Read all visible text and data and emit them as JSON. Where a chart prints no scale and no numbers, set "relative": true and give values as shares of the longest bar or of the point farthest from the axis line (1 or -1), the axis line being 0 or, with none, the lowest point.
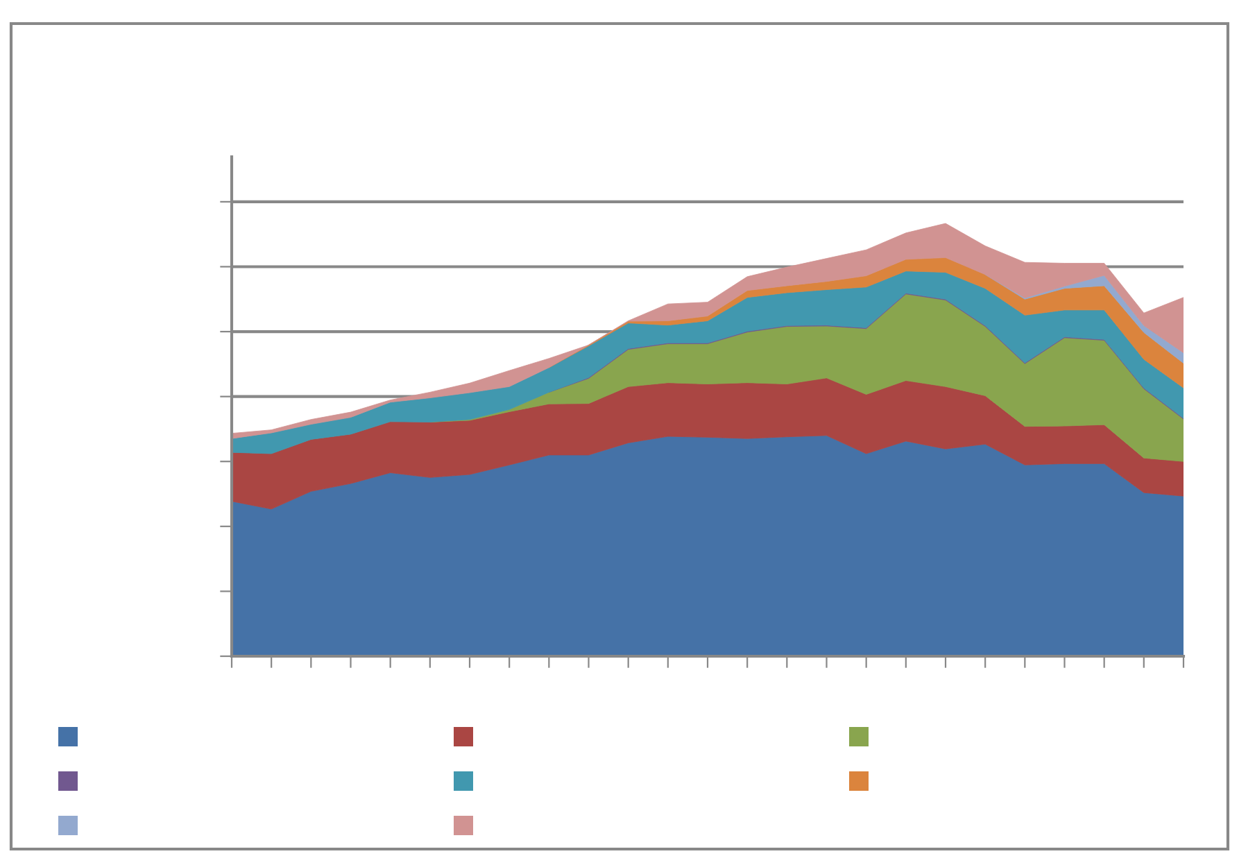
{
  "chart_data": {
    "type": "area",
    "stacked": true,
    "relative": true,
    "grid": "y",
    "categories": [
      null,
      null,
      null,
      null,
      null,
      null,
      null,
      null,
      null,
      null,
      null,
      null,
      null,
      null,
      null,
      null,
      null,
      null,
      null,
      null,
      null,
      null,
      null,
      null,
      null
    ],
    "series": [
      {
        "color": "#4572a7",
        "values": [
          0.358,
          0.34,
          0.381,
          0.399,
          0.424,
          0.413,
          0.42,
          0.442,
          0.465,
          0.465,
          0.493,
          0.508,
          0.506,
          0.503,
          0.507,
          0.51,
          0.468,
          0.497,
          0.479,
          0.49,
          0.442,
          0.445,
          0.445,
          0.378,
          0.37
        ]
      },
      {
        "color": "#aa4643",
        "values": [
          0.113,
          0.128,
          0.12,
          0.114,
          0.118,
          0.128,
          0.125,
          0.123,
          0.118,
          0.119,
          0.13,
          0.124,
          0.123,
          0.129,
          0.122,
          0.133,
          0.137,
          0.14,
          0.144,
          0.112,
          0.089,
          0.087,
          0.09,
          0.08,
          0.08
        ]
      },
      {
        "color": "#89a54e",
        "values": [
          null,
          null,
          null,
          null,
          null,
          0,
          0.002,
          0.005,
          0.027,
          0.058,
          0.086,
          0.09,
          0.093,
          0.117,
          0.133,
          0.12,
          0.152,
          0.2,
          0.2,
          0.16,
          0.145,
          0.204,
          0.195,
          0.16,
          0.098
        ]
      },
      {
        "color": "#71588f",
        "values": [
          null,
          null,
          null,
          null,
          null,
          null,
          null,
          null,
          0,
          0.002,
          0.002,
          0.002,
          0.002,
          0.002,
          0.002,
          0.002,
          0.002,
          0.002,
          0.002,
          0.002,
          0.002,
          0.002,
          0.002,
          0.002,
          0.002
        ]
      },
      {
        "color": "#4198af",
        "values": [
          0.032,
          0.048,
          0.035,
          0.039,
          0.045,
          0.056,
          0.062,
          0.053,
          0.057,
          0.073,
          0.059,
          0.041,
          0.051,
          0.078,
          0.076,
          0.082,
          0.094,
          0.051,
          0.062,
          0.086,
          0.11,
          0.062,
          0.068,
          0.066,
          0.07
        ]
      },
      {
        "color": "#db843d",
        "values": [
          null,
          null,
          null,
          null,
          null,
          null,
          null,
          null,
          0,
          0.002,
          0.004,
          0.01,
          0.011,
          0.016,
          0.016,
          0.019,
          0.026,
          0.027,
          0.034,
          0.032,
          0.037,
          0.05,
          0.056,
          0.062,
          0.057
        ]
      },
      {
        "color": "#93a9cf",
        "values": [
          null,
          null,
          null,
          null,
          null,
          null,
          null,
          null,
          null,
          null,
          null,
          null,
          null,
          null,
          null,
          null,
          null,
          null,
          null,
          0,
          0.003,
          0.005,
          0.024,
          0.016,
          0.024
        ]
      },
      {
        "color": "#d19392",
        "values": [
          0.012,
          0.007,
          0.011,
          0.012,
          0.005,
          0.013,
          0.022,
          0.037,
          0.021,
          0,
          0.001,
          0.039,
          0.032,
          0.032,
          0.043,
          0.053,
          0.06,
          0.061,
          0.079,
          0.066,
          0.082,
          0.053,
          0.028,
          0.029,
          0.128
        ]
      }
    ]
  }
}
